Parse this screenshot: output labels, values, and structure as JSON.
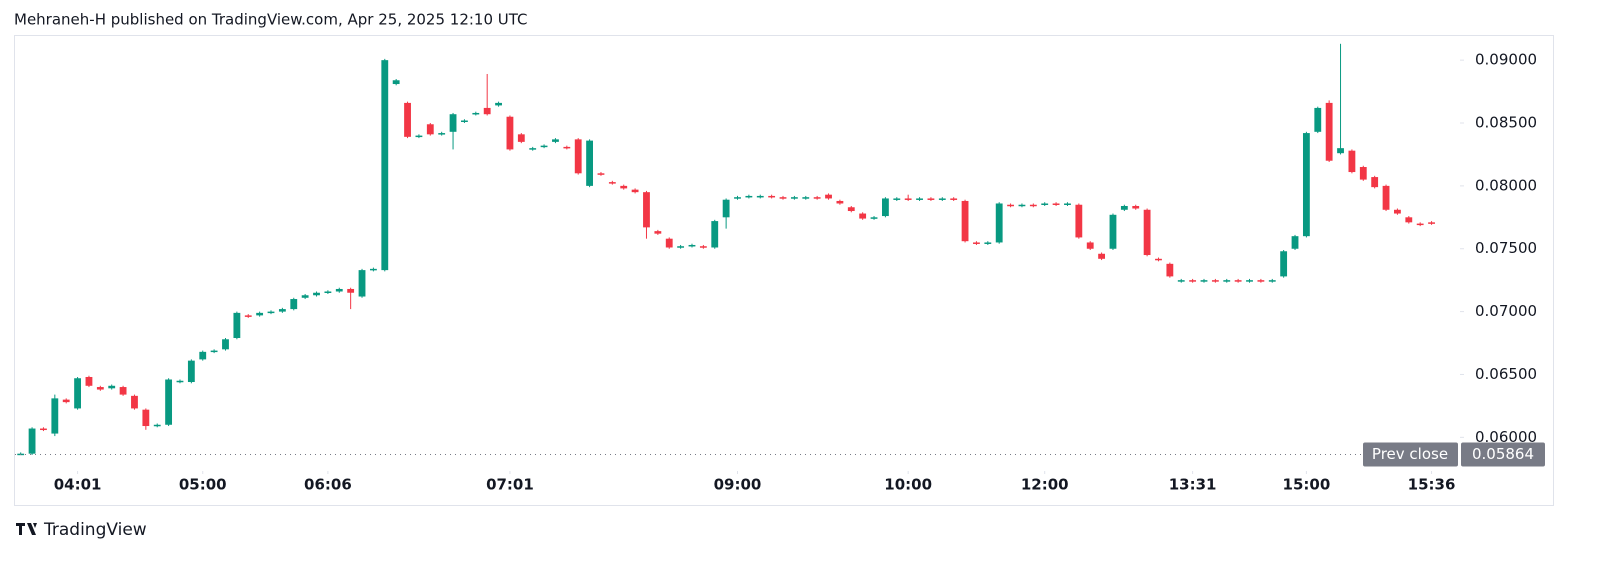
{
  "header": {
    "text": "Mehraneh-H published on TradingView.com, Apr 25, 2025 12:10 UTC"
  },
  "chart_data": {
    "type": "candlestick",
    "open": [
      0.05865,
      0.0587,
      0.0607,
      0.0603,
      0.063,
      0.0623,
      0.0648,
      0.064,
      0.0639,
      0.064,
      0.0633,
      0.0622,
      0.0609,
      0.061,
      0.0644,
      0.0644,
      0.0662,
      0.0668,
      0.067,
      0.0679,
      0.0697,
      0.0697,
      0.0699,
      0.07,
      0.0702,
      0.0711,
      0.0713,
      0.0715,
      0.0716,
      0.0718,
      0.0712,
      0.0733,
      0.0733,
      0.0881,
      0.0866,
      0.0839,
      0.0849,
      0.0841,
      0.0843,
      0.0851,
      0.0857,
      0.0862,
      0.0864,
      0.0855,
      0.0841,
      0.0829,
      0.0831,
      0.0835,
      0.0831,
      0.0837,
      0.08,
      0.081,
      0.0803,
      0.08,
      0.0797,
      0.0795,
      0.0764,
      0.0758,
      0.0751,
      0.0752,
      0.0752,
      0.0751,
      0.0775,
      0.079,
      0.0791,
      0.0791,
      0.0792,
      0.0791,
      0.079,
      0.079,
      0.0791,
      0.0793,
      0.0788,
      0.0783,
      0.0778,
      0.0774,
      0.0776,
      0.0789,
      0.079,
      0.0789,
      0.079,
      0.0789,
      0.079,
      0.0788,
      0.0755,
      0.0754,
      0.0755,
      0.0785,
      0.0784,
      0.0785,
      0.0785,
      0.0786,
      0.0785,
      0.0785,
      0.0755,
      0.0746,
      0.075,
      0.0781,
      0.0784,
      0.0781,
      0.0742,
      0.0738,
      0.0724,
      0.0725,
      0.0724,
      0.0725,
      0.0724,
      0.0725,
      0.0724,
      0.0725,
      0.0724,
      0.0728,
      0.075,
      0.076,
      0.0843,
      0.0866,
      0.0826,
      0.0828,
      0.0815,
      0.0807,
      0.08,
      0.0781,
      0.0775,
      0.077,
      0.0771
    ],
    "high": [
      0.0588,
      0.0608,
      0.0608,
      0.0634,
      0.0631,
      0.0648,
      0.0649,
      0.0641,
      0.0642,
      0.0641,
      0.0634,
      0.0623,
      0.0611,
      0.0647,
      0.0646,
      0.0662,
      0.0669,
      0.067,
      0.0679,
      0.07,
      0.0698,
      0.07,
      0.0701,
      0.0703,
      0.0711,
      0.0714,
      0.0716,
      0.0717,
      0.0719,
      0.0719,
      0.0734,
      0.0735,
      0.0901,
      0.0885,
      0.0867,
      0.0841,
      0.085,
      0.0843,
      0.0858,
      0.0853,
      0.0859,
      0.0889,
      0.0867,
      0.0856,
      0.0842,
      0.0831,
      0.0833,
      0.0838,
      0.0832,
      0.0838,
      0.0837,
      0.0811,
      0.0804,
      0.0801,
      0.0798,
      0.0796,
      0.0765,
      0.0759,
      0.0753,
      0.0754,
      0.0753,
      0.0773,
      0.079,
      0.0792,
      0.0793,
      0.0793,
      0.0793,
      0.0792,
      0.0792,
      0.0792,
      0.0792,
      0.0794,
      0.0789,
      0.0784,
      0.0779,
      0.0776,
      0.0791,
      0.0791,
      0.0793,
      0.0791,
      0.0791,
      0.0791,
      0.0791,
      0.0789,
      0.0756,
      0.0756,
      0.0787,
      0.0786,
      0.0786,
      0.0786,
      0.0787,
      0.0787,
      0.0787,
      0.0786,
      0.0756,
      0.0747,
      0.0778,
      0.0785,
      0.0785,
      0.0782,
      0.0743,
      0.0739,
      0.0726,
      0.0726,
      0.0726,
      0.0726,
      0.0726,
      0.0726,
      0.0726,
      0.0726,
      0.0726,
      0.0749,
      0.0761,
      0.0843,
      0.0863,
      0.0868,
      0.0913,
      0.0829,
      0.0816,
      0.0808,
      0.0801,
      0.0782,
      0.0776,
      0.0771,
      0.0772
    ],
    "low": [
      0.0586,
      0.0586,
      0.0605,
      0.0601,
      0.0627,
      0.0622,
      0.064,
      0.0637,
      0.0638,
      0.0633,
      0.0622,
      0.0606,
      0.0608,
      0.0609,
      0.0643,
      0.0643,
      0.0661,
      0.0667,
      0.0669,
      0.0678,
      0.0695,
      0.0696,
      0.0698,
      0.0699,
      0.0701,
      0.071,
      0.0712,
      0.0714,
      0.0715,
      0.0702,
      0.0711,
      0.0732,
      0.0732,
      0.088,
      0.0838,
      0.0838,
      0.084,
      0.084,
      0.0829,
      0.085,
      0.0856,
      0.0856,
      0.0863,
      0.0828,
      0.0834,
      0.0828,
      0.083,
      0.0834,
      0.0829,
      0.0809,
      0.0799,
      0.0808,
      0.0801,
      0.0797,
      0.0794,
      0.0758,
      0.0761,
      0.075,
      0.075,
      0.0751,
      0.075,
      0.075,
      0.0766,
      0.0789,
      0.079,
      0.079,
      0.079,
      0.0789,
      0.0789,
      0.0789,
      0.0789,
      0.0789,
      0.0785,
      0.0779,
      0.0773,
      0.0773,
      0.0775,
      0.0788,
      0.0788,
      0.0788,
      0.0788,
      0.0788,
      0.0788,
      0.0755,
      0.0753,
      0.0753,
      0.0754,
      0.0783,
      0.0783,
      0.0783,
      0.0784,
      0.0784,
      0.0784,
      0.0758,
      0.0749,
      0.0741,
      0.0749,
      0.078,
      0.0781,
      0.0744,
      0.074,
      0.0727,
      0.0723,
      0.0723,
      0.0723,
      0.0723,
      0.0723,
      0.0723,
      0.0723,
      0.0723,
      0.0723,
      0.0727,
      0.0749,
      0.0759,
      0.0842,
      0.0819,
      0.0825,
      0.081,
      0.0804,
      0.0798,
      0.078,
      0.0777,
      0.077,
      0.0768,
      0.0769
    ],
    "close": [
      0.0587,
      0.0607,
      0.0606,
      0.0631,
      0.0628,
      0.0647,
      0.0641,
      0.0638,
      0.0641,
      0.0634,
      0.0623,
      0.0609,
      0.061,
      0.0646,
      0.0645,
      0.0661,
      0.0668,
      0.0669,
      0.0678,
      0.0699,
      0.0696,
      0.0699,
      0.07,
      0.0702,
      0.071,
      0.0713,
      0.0715,
      0.0716,
      0.0718,
      0.0715,
      0.0733,
      0.0734,
      0.09,
      0.0884,
      0.0839,
      0.084,
      0.0841,
      0.0842,
      0.0857,
      0.0852,
      0.0858,
      0.0857,
      0.0866,
      0.0829,
      0.0835,
      0.083,
      0.0832,
      0.0837,
      0.083,
      0.081,
      0.0836,
      0.0809,
      0.0802,
      0.0798,
      0.0795,
      0.0767,
      0.0762,
      0.0751,
      0.0752,
      0.0753,
      0.0751,
      0.0772,
      0.0789,
      0.0791,
      0.0792,
      0.0792,
      0.0791,
      0.079,
      0.0791,
      0.0791,
      0.079,
      0.079,
      0.0786,
      0.078,
      0.0774,
      0.0775,
      0.079,
      0.079,
      0.0789,
      0.079,
      0.0789,
      0.079,
      0.0789,
      0.0756,
      0.0754,
      0.0755,
      0.0786,
      0.0784,
      0.0785,
      0.0784,
      0.0786,
      0.0785,
      0.0786,
      0.0759,
      0.075,
      0.0742,
      0.0777,
      0.0784,
      0.0782,
      0.0745,
      0.0741,
      0.0728,
      0.0725,
      0.0724,
      0.0725,
      0.0724,
      0.0725,
      0.0724,
      0.0725,
      0.0724,
      0.0725,
      0.0748,
      0.076,
      0.0842,
      0.0862,
      0.082,
      0.083,
      0.0811,
      0.0805,
      0.0799,
      0.0781,
      0.0778,
      0.0771,
      0.0769,
      0.077
    ],
    "up_color": "#089981",
    "down_color": "#f23645",
    "ylim": [
      0.0578,
      0.092
    ],
    "yticks": [
      {
        "value": 0.06,
        "label": "0.06000"
      },
      {
        "value": 0.065,
        "label": "0.06500"
      },
      {
        "value": 0.07,
        "label": "0.07000"
      },
      {
        "value": 0.075,
        "label": "0.07500"
      },
      {
        "value": 0.08,
        "label": "0.08000"
      },
      {
        "value": 0.085,
        "label": "0.08500"
      },
      {
        "value": 0.09,
        "label": "0.09000"
      }
    ],
    "xlim": [
      -0.5,
      126.5
    ],
    "xticks": [
      {
        "value": 5,
        "label": "04:01"
      },
      {
        "value": 16,
        "label": "05:00"
      },
      {
        "value": 27,
        "label": "06:06"
      },
      {
        "value": 43,
        "label": "07:01"
      },
      {
        "value": 63,
        "label": "09:00"
      },
      {
        "value": 78,
        "label": "10:00"
      },
      {
        "value": 90,
        "label": "12:00"
      },
      {
        "value": 103,
        "label": "13:31"
      },
      {
        "value": 113,
        "label": "15:00"
      },
      {
        "value": 124,
        "label": "15:36"
      }
    ],
    "prev_close": {
      "label": "Prev close",
      "value": 0.05864
    }
  },
  "footer": {
    "logo": "TradingView"
  }
}
